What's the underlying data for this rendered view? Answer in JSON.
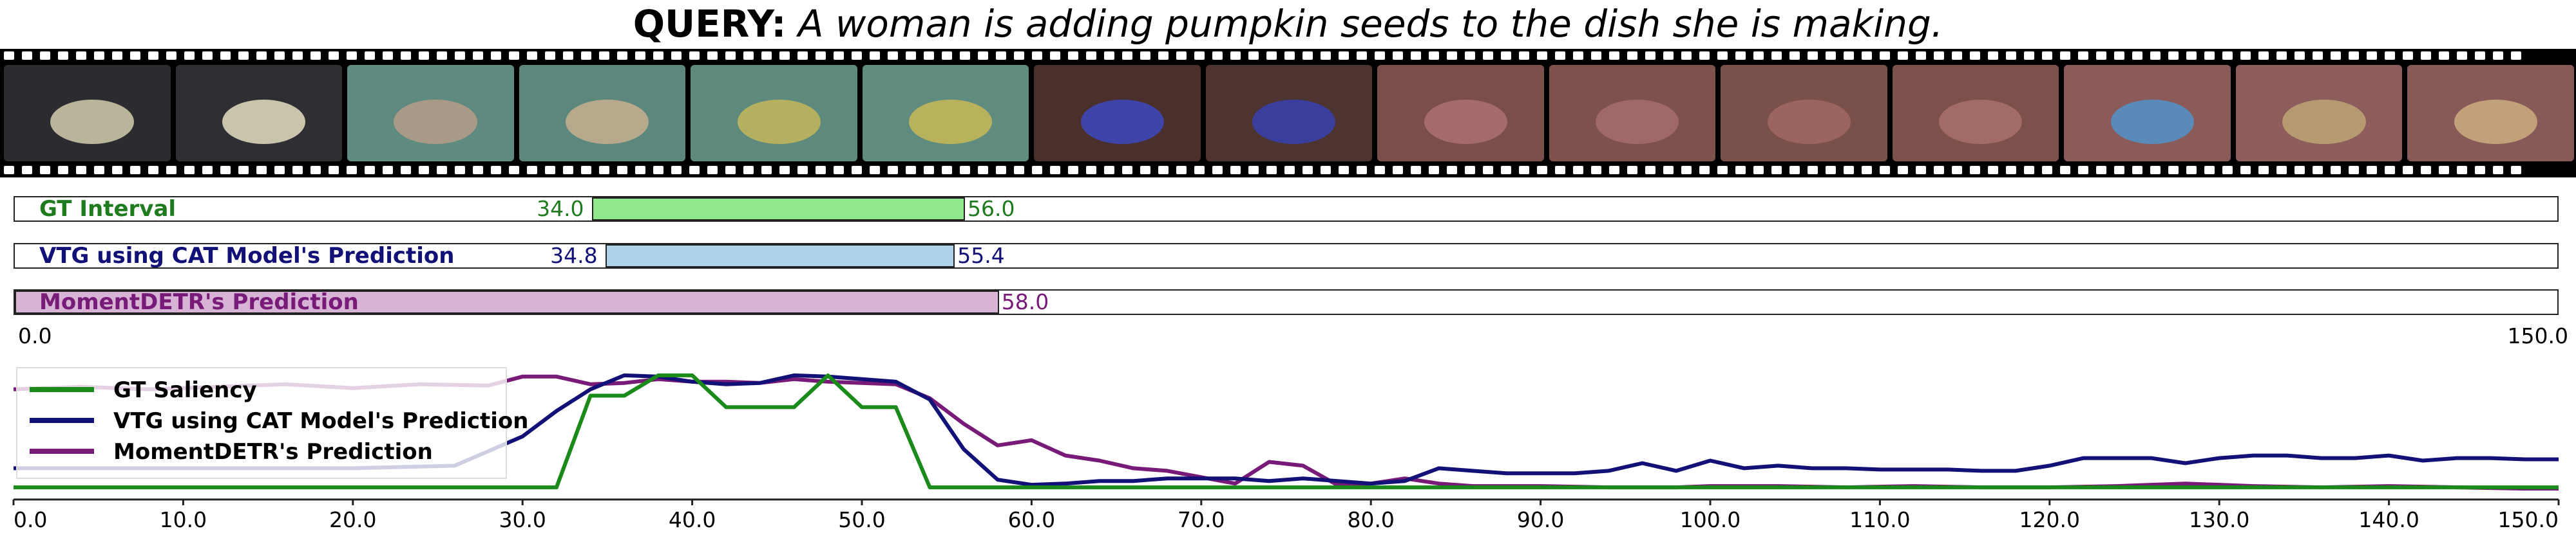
{
  "query": {
    "label": "QUERY:",
    "text": "A woman is adding pumpkin seeds to the dish she is making."
  },
  "filmstrip": {
    "frames": [
      {
        "bg": "#2b2b30",
        "obj": "#b9b59a"
      },
      {
        "bg": "#2e2e33",
        "obj": "#c9c5ad"
      },
      {
        "bg": "#5f8a80",
        "obj": "#a89a86"
      },
      {
        "bg": "#5c877c",
        "obj": "#b7aa8c"
      },
      {
        "bg": "#5e8a7e",
        "obj": "#b4b060"
      },
      {
        "bg": "#608c80",
        "obj": "#b8b25c"
      },
      {
        "bg": "#4a2f2c",
        "obj": "#3f45a8"
      },
      {
        "bg": "#4d3430",
        "obj": "#3a3f9e"
      },
      {
        "bg": "#7a4e4a",
        "obj": "#a56a6a"
      },
      {
        "bg": "#7d524d",
        "obj": "#a06868"
      },
      {
        "bg": "#7a504b",
        "obj": "#9c6460"
      },
      {
        "bg": "#7c514c",
        "obj": "#a36b66"
      },
      {
        "bg": "#8a5b58",
        "obj": "#5a8ab8"
      },
      {
        "bg": "#8c5d5a",
        "obj": "#b69a72"
      },
      {
        "bg": "#885a57",
        "obj": "#c2a07a"
      }
    ]
  },
  "chart_data": {
    "type": "line",
    "x_range": [
      0,
      150
    ],
    "intervals": [
      {
        "name": "GT Interval",
        "start": 34.0,
        "end": 56.0,
        "start_label": "34.0",
        "end_label": "56.0",
        "color": "#8fe88c",
        "text_color": "#1e7b1e"
      },
      {
        "name": "VTG using CAT Model's Prediction",
        "start": 34.8,
        "end": 55.4,
        "start_label": "34.8",
        "end_label": "55.4",
        "color": "#aed4ea",
        "text_color": "#111177"
      },
      {
        "name": "MomentDETR's Prediction",
        "start": 0.0,
        "end": 58.0,
        "start_label": "",
        "end_label": "58.0",
        "color": "#d7b4d6",
        "text_color": "#781a78"
      }
    ],
    "interval_axis": {
      "min_label": "0.0",
      "max_label": "150.0"
    },
    "x_ticks": [
      "0.0",
      "10.0",
      "20.0",
      "30.0",
      "40.0",
      "50.0",
      "60.0",
      "70.0",
      "80.0",
      "90.0",
      "100.0",
      "110.0",
      "120.0",
      "130.0",
      "140.0",
      "150.0"
    ],
    "ylim": [
      0,
      1
    ],
    "legend_position": "top-left",
    "series": [
      {
        "name": "GT Saliency",
        "color": "#1a8a1a",
        "points": [
          [
            0,
            0.05
          ],
          [
            32,
            0.05
          ],
          [
            34,
            0.77
          ],
          [
            36,
            0.77
          ],
          [
            38,
            0.93
          ],
          [
            40,
            0.93
          ],
          [
            42,
            0.68
          ],
          [
            46,
            0.68
          ],
          [
            48,
            0.93
          ],
          [
            50,
            0.68
          ],
          [
            52,
            0.68
          ],
          [
            54,
            0.05
          ],
          [
            150,
            0.05
          ]
        ]
      },
      {
        "name": "VTG using CAT Model's Prediction",
        "color": "#111177",
        "points": [
          [
            0,
            0.2
          ],
          [
            10,
            0.2
          ],
          [
            20,
            0.2
          ],
          [
            26,
            0.22
          ],
          [
            30,
            0.45
          ],
          [
            32,
            0.65
          ],
          [
            34,
            0.82
          ],
          [
            36,
            0.93
          ],
          [
            38,
            0.92
          ],
          [
            40,
            0.88
          ],
          [
            42,
            0.86
          ],
          [
            44,
            0.87
          ],
          [
            46,
            0.93
          ],
          [
            48,
            0.92
          ],
          [
            50,
            0.9
          ],
          [
            52,
            0.88
          ],
          [
            54,
            0.74
          ],
          [
            56,
            0.35
          ],
          [
            58,
            0.11
          ],
          [
            60,
            0.07
          ],
          [
            62,
            0.08
          ],
          [
            64,
            0.1
          ],
          [
            66,
            0.1
          ],
          [
            68,
            0.12
          ],
          [
            70,
            0.12
          ],
          [
            72,
            0.12
          ],
          [
            74,
            0.1
          ],
          [
            76,
            0.12
          ],
          [
            78,
            0.1
          ],
          [
            80,
            0.08
          ],
          [
            82,
            0.1
          ],
          [
            84,
            0.2
          ],
          [
            86,
            0.18
          ],
          [
            88,
            0.16
          ],
          [
            90,
            0.16
          ],
          [
            92,
            0.16
          ],
          [
            94,
            0.18
          ],
          [
            96,
            0.24
          ],
          [
            98,
            0.18
          ],
          [
            100,
            0.26
          ],
          [
            102,
            0.2
          ],
          [
            104,
            0.22
          ],
          [
            106,
            0.2
          ],
          [
            108,
            0.2
          ],
          [
            110,
            0.19
          ],
          [
            112,
            0.19
          ],
          [
            114,
            0.19
          ],
          [
            116,
            0.18
          ],
          [
            118,
            0.18
          ],
          [
            120,
            0.22
          ],
          [
            122,
            0.28
          ],
          [
            124,
            0.28
          ],
          [
            126,
            0.28
          ],
          [
            128,
            0.24
          ],
          [
            130,
            0.28
          ],
          [
            132,
            0.3
          ],
          [
            134,
            0.3
          ],
          [
            136,
            0.28
          ],
          [
            138,
            0.28
          ],
          [
            140,
            0.3
          ],
          [
            142,
            0.26
          ],
          [
            144,
            0.28
          ],
          [
            146,
            0.28
          ],
          [
            148,
            0.27
          ],
          [
            150,
            0.27
          ]
        ]
      },
      {
        "name": "MomentDETR's Prediction",
        "color": "#781a78",
        "points": [
          [
            0,
            0.82
          ],
          [
            4,
            0.84
          ],
          [
            8,
            0.82
          ],
          [
            12,
            0.84
          ],
          [
            16,
            0.86
          ],
          [
            20,
            0.83
          ],
          [
            24,
            0.86
          ],
          [
            28,
            0.85
          ],
          [
            30,
            0.92
          ],
          [
            32,
            0.92
          ],
          [
            34,
            0.86
          ],
          [
            36,
            0.87
          ],
          [
            38,
            0.9
          ],
          [
            40,
            0.88
          ],
          [
            42,
            0.88
          ],
          [
            44,
            0.87
          ],
          [
            46,
            0.9
          ],
          [
            48,
            0.88
          ],
          [
            50,
            0.87
          ],
          [
            52,
            0.86
          ],
          [
            54,
            0.75
          ],
          [
            56,
            0.55
          ],
          [
            58,
            0.38
          ],
          [
            60,
            0.42
          ],
          [
            62,
            0.3
          ],
          [
            64,
            0.26
          ],
          [
            66,
            0.2
          ],
          [
            68,
            0.18
          ],
          [
            70,
            0.13
          ],
          [
            72,
            0.08
          ],
          [
            74,
            0.25
          ],
          [
            76,
            0.22
          ],
          [
            78,
            0.07
          ],
          [
            80,
            0.08
          ],
          [
            82,
            0.12
          ],
          [
            84,
            0.08
          ],
          [
            86,
            0.06
          ],
          [
            90,
            0.06
          ],
          [
            94,
            0.05
          ],
          [
            98,
            0.05
          ],
          [
            100,
            0.06
          ],
          [
            104,
            0.06
          ],
          [
            108,
            0.05
          ],
          [
            112,
            0.06
          ],
          [
            116,
            0.05
          ],
          [
            120,
            0.05
          ],
          [
            124,
            0.06
          ],
          [
            128,
            0.08
          ],
          [
            132,
            0.06
          ],
          [
            136,
            0.05
          ],
          [
            140,
            0.06
          ],
          [
            144,
            0.05
          ],
          [
            148,
            0.04
          ],
          [
            150,
            0.04
          ]
        ]
      }
    ]
  }
}
